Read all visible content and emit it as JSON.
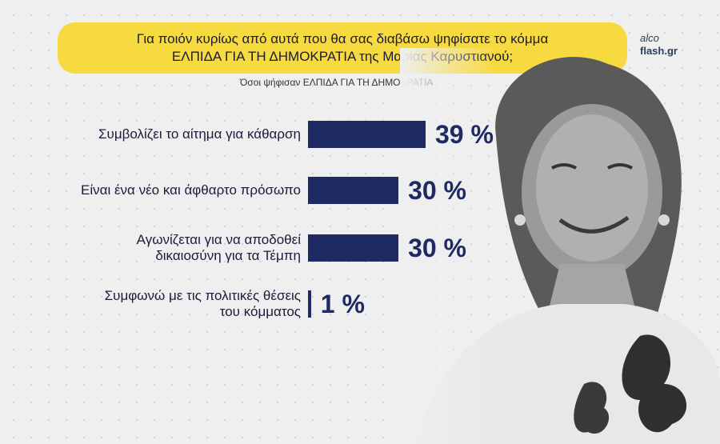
{
  "header": {
    "title_line1": "Για ποιόν κυρίως από αυτά που θα σας διαβάσω ψηφίσατε το κόμμα",
    "title_line2": "ΕΛΠΙΔΑ ΓΙΑ ΤΗ ΔΗΜΟΚΡΑΤΙΑ της Μαρίας Καρυστιανού;",
    "subtitle": "Όσοι ψήφισαν ΕΛΠΙΔΑ ΓΙΑ ΤΗ ΔΗΜΟΚΡΑΤΙΑ"
  },
  "logo": {
    "line1": "alco",
    "line2": "flash.gr"
  },
  "colors": {
    "bar": "#1f2a64",
    "title_bg": "#f7da3f"
  },
  "chart_data": {
    "type": "bar",
    "orientation": "horizontal",
    "categories": [
      [
        "Συμβολίζει το αίτημα για κάθαρση"
      ],
      [
        "Είναι ένα νέο και άφθαρτο πρόσωπο"
      ],
      [
        "Αγωνίζεται για να αποδοθεί",
        "δικαιοσύνη για τα Τέμπη"
      ],
      [
        "Συμφωνώ με τις πολιτικές θέσεις",
        "του κόμματος"
      ]
    ],
    "values": [
      39,
      30,
      30,
      1
    ],
    "value_labels": [
      "39 %",
      "30 %",
      "30 %",
      "1 %"
    ],
    "title": "Για ποιόν κυρίως από αυτά που θα σας διαβάσω ψηφίσατε το κόμμα ΕΛΠΙΔΑ ΓΙΑ ΤΗ ΔΗΜΟΚΡΑΤΙΑ της Μαρίας Καρυστιανού;",
    "subtitle": "Όσοι ψήφισαν ΕΛΠΙΔΑ ΓΙΑ ΤΗ ΔΗΜΟΚΡΑΤΙΑ",
    "xlim": [
      0,
      39
    ],
    "grid": false,
    "legend": "none"
  }
}
